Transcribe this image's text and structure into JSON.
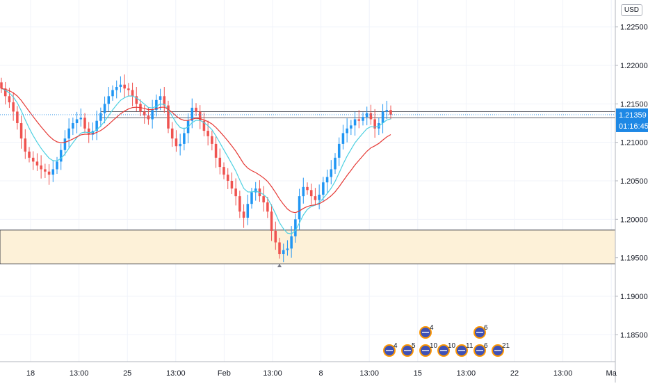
{
  "currency": "USD",
  "colors": {
    "up": "#2196f3",
    "down": "#ef5350",
    "ma_fast": "#4dd0e1",
    "ma_slow": "#e53935",
    "zone_fill": "#fdf1d8",
    "zone_border": "#363a45",
    "price_tag": "#1e88e5",
    "grid": "#f0f3fa"
  },
  "chart_data": {
    "type": "candlestick",
    "ylim": [
      1.1815,
      1.2285
    ],
    "y_ticks": [
      "1.22500",
      "1.22000",
      "1.21500",
      "1.21000",
      "1.20500",
      "1.20000",
      "1.19500",
      "1.19000",
      "1.18500"
    ],
    "x_ticks": [
      "18",
      "13:00",
      "25",
      "13:00",
      "Feb",
      "13:00",
      "8",
      "13:00",
      "15",
      "13:00",
      "22",
      "13:00",
      "Ma"
    ],
    "last_price": "1.21359",
    "countdown": "01:16:45",
    "zone": [
      1.1942,
      1.1986
    ],
    "resistance_band": [
      1.2132,
      1.214
    ],
    "closes": [
      1.217,
      1.216,
      1.2152,
      1.214,
      1.2125,
      1.2105,
      1.2088,
      1.208,
      1.2075,
      1.207,
      1.2065,
      1.2062,
      1.2058,
      1.2065,
      1.2075,
      1.209,
      1.2105,
      1.2118,
      1.2125,
      1.213,
      1.2132,
      1.2118,
      1.211,
      1.2115,
      1.2128,
      1.2138,
      1.215,
      1.216,
      1.2168,
      1.2172,
      1.2175,
      1.217,
      1.2168,
      1.216,
      1.215,
      1.214,
      1.2135,
      1.213,
      1.2142,
      1.2155,
      1.216,
      1.2148,
      1.2118,
      1.2105,
      1.2095,
      1.2098,
      1.2112,
      1.2128,
      1.2145,
      1.214,
      1.2128,
      1.2115,
      1.2108,
      1.2098,
      1.208,
      1.2068,
      1.2058,
      1.205,
      1.204,
      1.203,
      1.201,
      1.2002,
      1.202,
      1.2035,
      1.204,
      1.203,
      1.2022,
      1.201,
      1.1985,
      1.197,
      1.1955,
      1.196,
      1.1962,
      1.1978,
      1.2,
      1.203,
      1.2042,
      1.2038,
      1.203,
      1.2025,
      1.2032,
      1.2048,
      1.2055,
      1.2065,
      1.208,
      1.2098,
      1.2112,
      1.2118,
      1.2122,
      1.213,
      1.2128,
      1.2133,
      1.2138,
      1.213,
      1.2118,
      1.2125,
      1.214,
      1.2142,
      1.2136
    ],
    "events": [
      {
        "x_index": 2,
        "row": "top",
        "label": "4"
      },
      {
        "x_index": 5,
        "row": "top",
        "label": "6"
      },
      {
        "x_index": 0,
        "row": "bottom",
        "label": "4"
      },
      {
        "x_index": 1,
        "row": "bottom",
        "label": "5"
      },
      {
        "x_index": 2,
        "row": "bottom",
        "label": "10"
      },
      {
        "x_index": 3,
        "row": "bottom",
        "label": "10"
      },
      {
        "x_index": 4,
        "row": "bottom",
        "label": "11"
      },
      {
        "x_index": 5,
        "row": "bottom",
        "label": "6"
      },
      {
        "x_index": 6,
        "row": "bottom",
        "label": "21"
      }
    ]
  }
}
